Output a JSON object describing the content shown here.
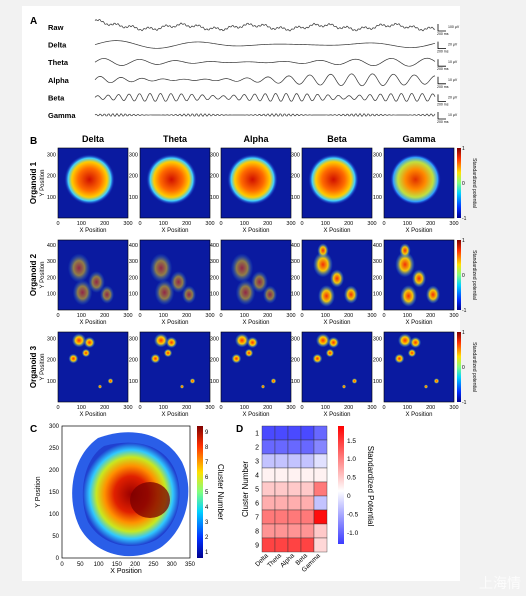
{
  "panels": {
    "A": "A",
    "B": "B",
    "C": "C",
    "D": "D"
  },
  "colors": {
    "background": "#f2f2f2",
    "panel_bg": "#ffffff",
    "trace": "#333333",
    "heat_low": "#1a1a8c",
    "heat_high": "#8b0000"
  },
  "panel_a": {
    "traces": [
      {
        "label": "Raw",
        "scale_v": "100 µV",
        "scale_t": "200 ms"
      },
      {
        "label": "Delta",
        "scale_v": "20 µV",
        "scale_t": "200 ms"
      },
      {
        "label": "Theta",
        "scale_v": "10 µV",
        "scale_t": "200 ms"
      },
      {
        "label": "Alpha",
        "scale_v": "10 µV",
        "scale_t": "200 ms"
      },
      {
        "label": "Beta",
        "scale_v": "20 µV",
        "scale_t": "200 ms"
      },
      {
        "label": "Gamma",
        "scale_v": "10 µV",
        "scale_t": "200 ms"
      }
    ]
  },
  "panel_b": {
    "bands": [
      "Delta",
      "Theta",
      "Alpha",
      "Beta",
      "Gamma"
    ],
    "organoids": [
      "Organoid 1",
      "Organoid 2",
      "Organoid 3"
    ],
    "x_label": "X Position",
    "y_label": "Y Position",
    "colorbar_label": "Standardized potential",
    "colorbar_ticks": [
      "1",
      "0",
      "-1"
    ],
    "x_ticks": [
      "0",
      "100",
      "200",
      "300"
    ],
    "y_ticks_1": [
      "100",
      "200",
      "300"
    ],
    "y_ticks_2": [
      "100",
      "200",
      "300",
      "400"
    ],
    "y_ticks_3": [
      "100",
      "200",
      "300"
    ]
  },
  "panel_c": {
    "x_label": "X Position",
    "y_label": "Y Position",
    "colorbar_label": "Cluster Number",
    "x_ticks": [
      "0",
      "50",
      "100",
      "150",
      "200",
      "250",
      "300",
      "350"
    ],
    "y_ticks": [
      "0",
      "50",
      "100",
      "150",
      "200",
      "250",
      "300"
    ],
    "cluster_ticks": [
      "1",
      "2",
      "3",
      "4",
      "5",
      "6",
      "7",
      "8",
      "9"
    ]
  },
  "chart_data": {
    "type": "heatmap",
    "title": "",
    "xlabel": "",
    "ylabel": "Cluster Number",
    "categories": [
      "Delta",
      "Theta",
      "Alpha",
      "Beta",
      "Gamma"
    ],
    "rows": [
      "1",
      "2",
      "3",
      "4",
      "5",
      "6",
      "7",
      "8",
      "9"
    ],
    "values": [
      [
        -1.2,
        -1.2,
        -1.2,
        -1.2,
        -1.0
      ],
      [
        -1.0,
        -1.0,
        -1.0,
        -1.0,
        -0.8
      ],
      [
        -0.4,
        -0.4,
        -0.4,
        -0.4,
        -0.2
      ],
      [
        0.1,
        0.1,
        0.1,
        0.1,
        0.1
      ],
      [
        0.4,
        0.4,
        0.4,
        0.4,
        1.0
      ],
      [
        0.6,
        0.6,
        0.6,
        0.6,
        -0.4
      ],
      [
        1.0,
        1.0,
        1.0,
        1.0,
        1.8
      ],
      [
        0.8,
        0.8,
        0.8,
        0.8,
        0.4
      ],
      [
        1.4,
        1.4,
        1.4,
        1.4,
        0.3
      ]
    ],
    "colorbar_label": "Standardized Potential",
    "colorbar_ticks": [
      "1.5",
      "1.0",
      "0.5",
      "0",
      "-0.5",
      "-1.0"
    ],
    "vlim": [
      -1.3,
      1.9
    ]
  },
  "watermark": "上海情"
}
